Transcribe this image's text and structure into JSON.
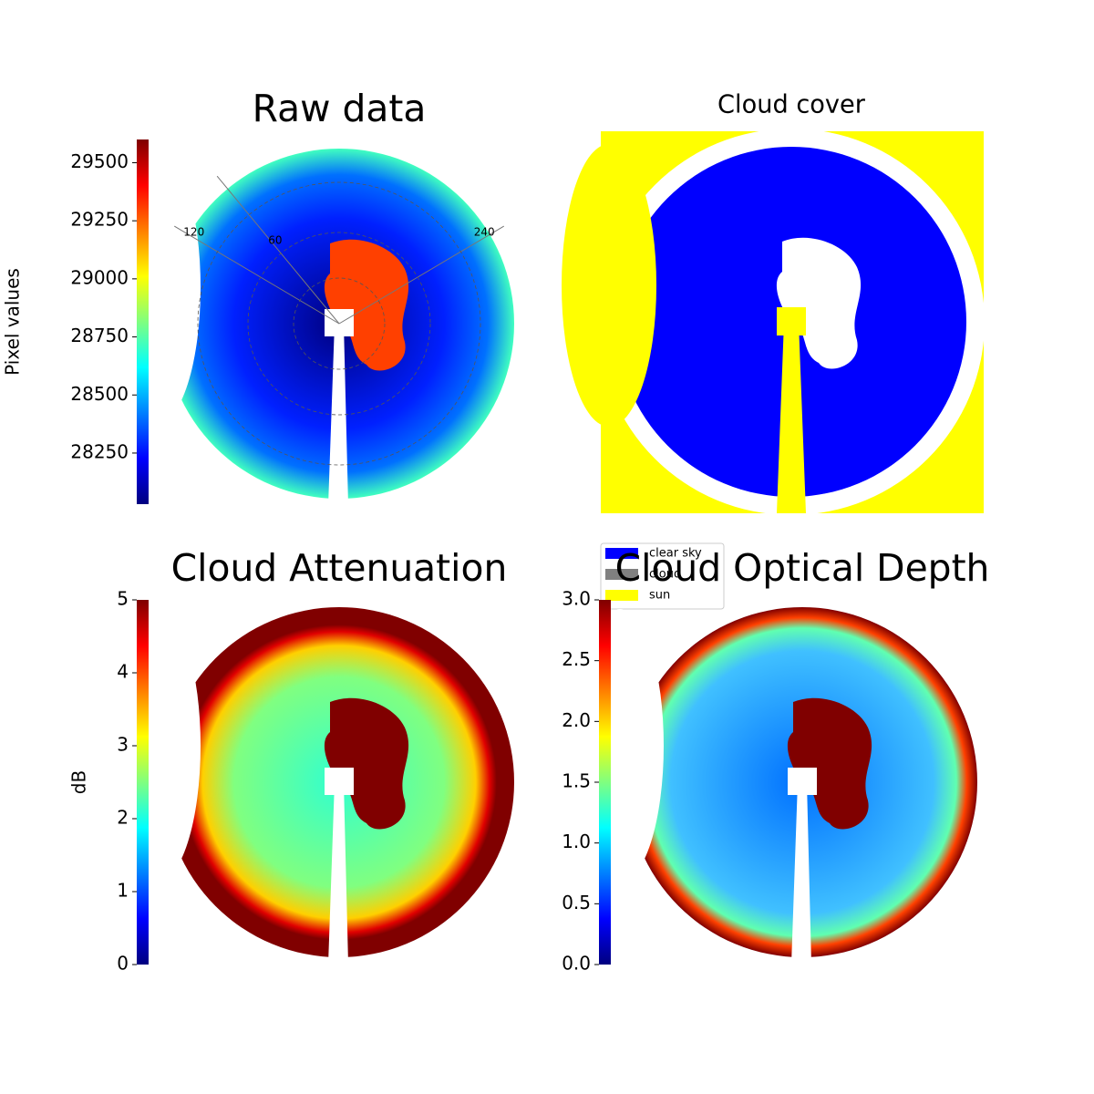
{
  "chart_data": [
    {
      "type": "image",
      "title": "Raw data",
      "colormap": "jet",
      "ylabel": "Pixel values",
      "ylim": [
        28030,
        29600
      ],
      "yticks": [
        28250,
        28500,
        28750,
        29000,
        29250,
        29500
      ],
      "angle_labels": [
        "120",
        "60",
        "240"
      ]
    },
    {
      "type": "mask",
      "title": "Cloud cover",
      "legend": [
        {
          "name": "clear sky",
          "color": "#0000ff"
        },
        {
          "name": "cloud",
          "color": "#808080"
        },
        {
          "name": "sun",
          "color": "#ffff00"
        }
      ]
    },
    {
      "type": "image",
      "title": "Cloud Attenuation",
      "colormap": "jet",
      "ylabel": "dB",
      "ylim": [
        0,
        5
      ],
      "yticks": [
        0,
        1,
        2,
        3,
        4,
        5
      ]
    },
    {
      "type": "image",
      "title": "Cloud Optical Depth",
      "colormap": "jet",
      "ylim": [
        0,
        3
      ],
      "yticks": [
        {
          "value": 0,
          "label": "0.0"
        },
        {
          "value": 0.5,
          "label": "0.5"
        },
        {
          "value": 1,
          "label": "1.0"
        },
        {
          "value": 1.5,
          "label": "1.5"
        },
        {
          "value": 2,
          "label": "2.0"
        },
        {
          "value": 2.5,
          "label": "2.5"
        },
        {
          "value": 3,
          "label": "3.0"
        }
      ]
    }
  ]
}
